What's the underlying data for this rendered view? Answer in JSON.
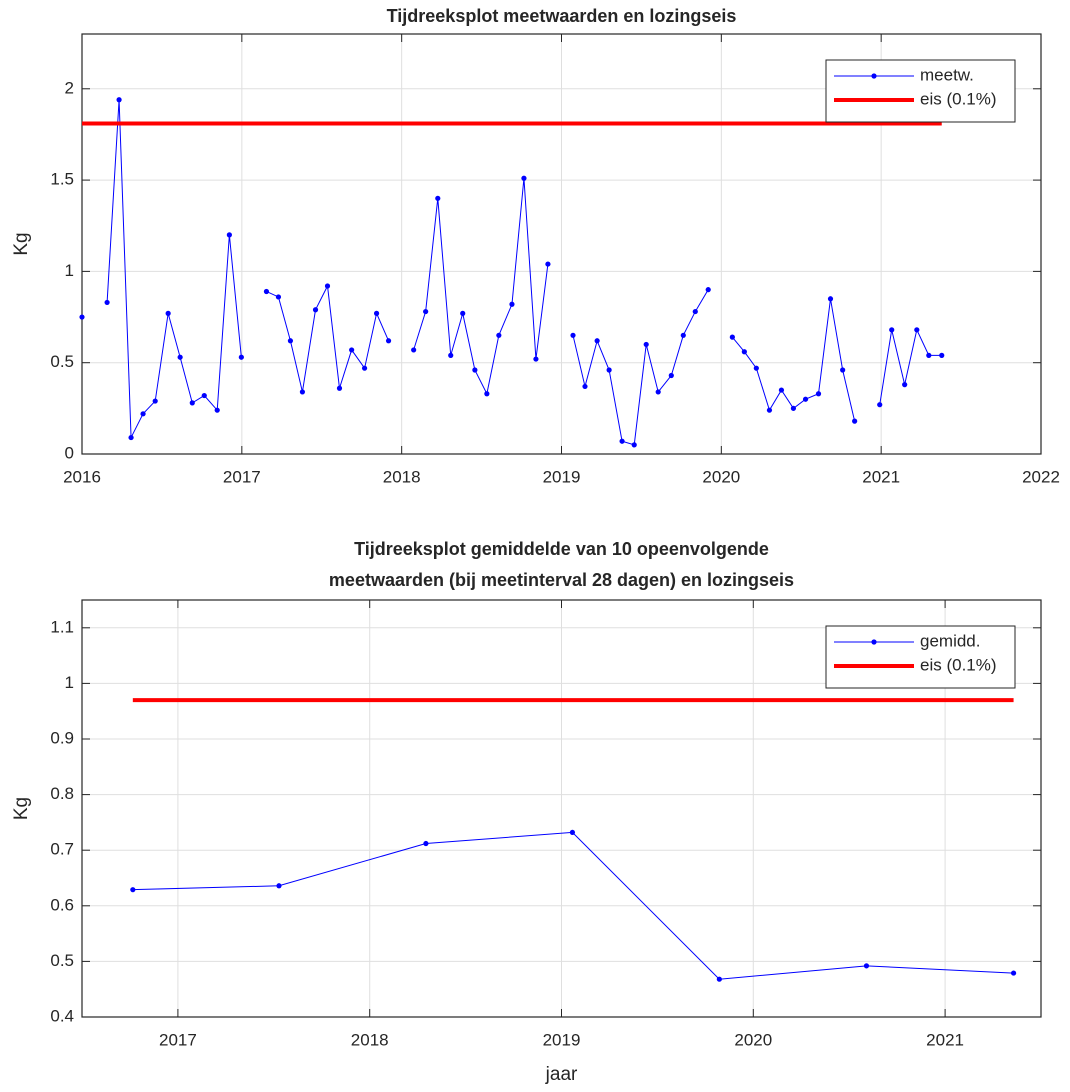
{
  "chart_data": [
    {
      "type": "line",
      "title": [
        "Tijdreeksplot meetwaarden en lozingseis"
      ],
      "ylabel": "Kg",
      "xlim": [
        2016,
        2022
      ],
      "xticks": [
        2016,
        2017,
        2018,
        2019,
        2020,
        2021,
        2022
      ],
      "ylim": [
        0,
        2.3
      ],
      "yticks": [
        0,
        0.5,
        1,
        1.5,
        2
      ],
      "grid": true,
      "legend": "northeast",
      "series": [
        {
          "name": "meetw.",
          "color": "#0000ff",
          "linewidth": 1,
          "marker": true,
          "x": [
            2016.0,
            2016.075,
            2016.157,
            2016.232,
            2016.307,
            2016.382,
            2016.458,
            2016.539,
            2016.614,
            2016.69,
            2016.765,
            2016.846,
            2016.922,
            2016.997,
            2017.072,
            2017.154,
            2017.229,
            2017.304,
            2017.379,
            2017.461,
            2017.536,
            2017.611,
            2017.687,
            2017.768,
            2017.843,
            2017.918,
            2017.994,
            2018.075,
            2018.15,
            2018.226,
            2018.307,
            2018.382,
            2018.458,
            2018.533,
            2018.608,
            2018.69,
            2018.765,
            2018.84,
            2018.915,
            2018.991,
            2019.072,
            2019.147,
            2019.223,
            2019.298,
            2019.379,
            2019.455,
            2019.53,
            2019.605,
            2019.687,
            2019.762,
            2019.837,
            2019.918,
            2019.994,
            2020.069,
            2020.144,
            2020.219,
            2020.301,
            2020.376,
            2020.451,
            2020.527,
            2020.608,
            2020.683,
            2020.759,
            2020.834,
            2020.915,
            2020.991,
            2021.066,
            2021.147,
            2021.223,
            2021.298,
            2021.379
          ],
          "values": [
            0.75,
            null,
            0.83,
            1.94,
            0.09,
            0.22,
            0.29,
            0.77,
            0.53,
            0.28,
            0.32,
            0.24,
            1.2,
            0.53,
            null,
            0.89,
            0.86,
            0.62,
            0.34,
            0.79,
            0.92,
            0.36,
            0.57,
            0.47,
            0.77,
            0.62,
            null,
            0.57,
            0.78,
            1.4,
            0.54,
            0.77,
            0.46,
            0.33,
            0.65,
            0.82,
            1.51,
            0.52,
            1.04,
            null,
            0.65,
            0.37,
            0.62,
            0.46,
            0.07,
            0.05,
            0.6,
            0.34,
            0.43,
            0.65,
            0.78,
            0.9,
            null,
            0.64,
            0.56,
            0.47,
            0.24,
            0.35,
            0.25,
            0.3,
            0.33,
            0.85,
            0.46,
            0.18,
            null,
            0.27,
            0.68,
            0.38,
            0.68,
            0.54,
            0.54
          ]
        },
        {
          "name": "eis (0.1%)",
          "color": "#ff0000",
          "linewidth": 4,
          "marker": false,
          "x": [
            2016,
            2021.379
          ],
          "values": [
            1.81,
            1.81
          ]
        }
      ]
    },
    {
      "type": "line",
      "title": [
        "Tijdreeksplot gemiddelde van 10 opeenvolgende",
        "meetwaarden (bij meetinterval 28 dagen) en lozingseis"
      ],
      "ylabel": "Kg",
      "xlabel": "jaar",
      "xlim": [
        2016.5,
        2021.5
      ],
      "xticks": [
        2017,
        2018,
        2019,
        2020,
        2021
      ],
      "ylim": [
        0.4,
        1.15
      ],
      "yticks": [
        0.4,
        0.5,
        0.6,
        0.7,
        0.8,
        0.9,
        1,
        1.1
      ],
      "grid": true,
      "legend": "northeast",
      "series": [
        {
          "name": "gemidd.",
          "color": "#0000ff",
          "linewidth": 1,
          "marker": true,
          "x": [
            2016.765,
            2017.527,
            2018.293,
            2019.057,
            2019.823,
            2020.59,
            2021.357
          ],
          "values": [
            0.629,
            0.636,
            0.712,
            0.732,
            0.468,
            0.492,
            0.479
          ]
        },
        {
          "name": "eis (0.1%)",
          "color": "#ff0000",
          "linewidth": 4,
          "marker": false,
          "x": [
            2016.765,
            2021.357
          ],
          "values": [
            0.97,
            0.97
          ]
        }
      ]
    }
  ]
}
